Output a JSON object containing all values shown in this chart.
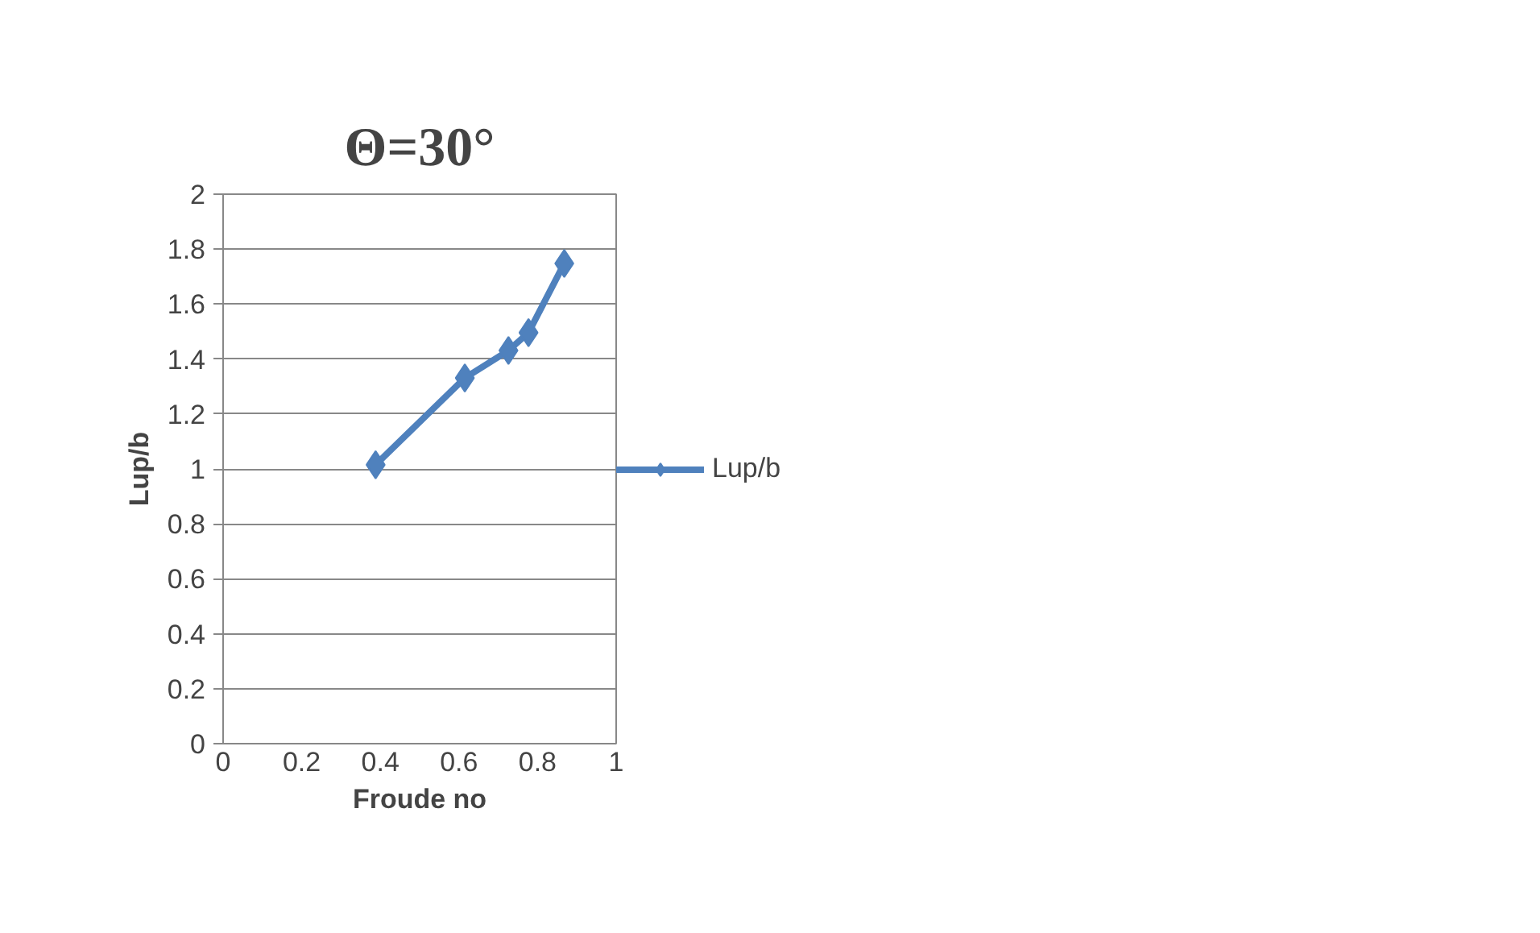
{
  "chart_data": {
    "type": "line",
    "title": "Θ=30°",
    "xlabel": "Froude no",
    "ylabel": "Lup/b",
    "x": [
      0.388,
      0.615,
      0.726,
      0.777,
      0.868
    ],
    "series": [
      {
        "name": "Lup/b",
        "color": "#4f81bd",
        "values": [
          1.015,
          1.331,
          1.431,
          1.496,
          1.748
        ]
      }
    ],
    "xlim": [
      0,
      1
    ],
    "xticks": [
      0,
      0.2,
      0.4,
      0.6,
      0.8,
      1
    ],
    "ylim": [
      0,
      2
    ],
    "yticks": [
      0,
      0.2,
      0.4,
      0.6,
      0.8,
      1,
      1.2,
      1.4,
      1.6,
      1.8,
      2
    ],
    "grid": "y",
    "legend": "right",
    "marker": "diamond",
    "line_style": "solid"
  }
}
